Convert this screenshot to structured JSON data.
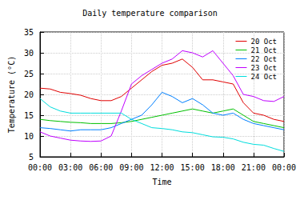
{
  "chart_data": {
    "type": "line",
    "title": "Daily temperature comparison",
    "x_label": "Time",
    "y_label": "Temperature (°C)",
    "x": [
      0,
      1,
      2,
      3,
      4,
      5,
      6,
      7,
      8,
      9,
      10,
      11,
      12,
      13,
      14,
      15,
      16,
      17,
      18,
      19,
      20,
      21,
      22,
      23,
      24
    ],
    "series": [
      {
        "name": "20 Oct",
        "color": "#e00000",
        "values": [
          21.5,
          21.3,
          20.5,
          20.2,
          19.8,
          19.0,
          18.5,
          18.5,
          19.5,
          21.5,
          23.5,
          25.5,
          27.0,
          27.5,
          28.5,
          26.5,
          23.5,
          23.5,
          23.0,
          22.5,
          18.0,
          15.5,
          15.0,
          14.0,
          13.5
        ]
      },
      {
        "name": "21 Oct",
        "color": "#00c000",
        "values": [
          14.0,
          13.7,
          13.5,
          13.3,
          13.2,
          13.0,
          13.0,
          13.0,
          13.2,
          13.5,
          14.0,
          14.5,
          15.0,
          15.5,
          16.0,
          16.5,
          16.0,
          15.5,
          16.0,
          16.5,
          15.0,
          13.5,
          13.0,
          12.5,
          12.0
        ]
      },
      {
        "name": "22 Oct",
        "color": "#0080ff",
        "values": [
          12.0,
          11.8,
          11.5,
          11.2,
          11.5,
          11.5,
          11.5,
          12.0,
          13.0,
          14.0,
          15.0,
          17.5,
          20.5,
          19.5,
          18.0,
          19.0,
          17.5,
          15.5,
          15.0,
          15.5,
          14.0,
          13.0,
          12.5,
          12.0,
          11.5
        ]
      },
      {
        "name": "23 Oct",
        "color": "#c000ff",
        "values": [
          11.0,
          10.0,
          9.5,
          9.0,
          8.8,
          8.7,
          8.8,
          10.0,
          16.0,
          22.5,
          24.5,
          26.0,
          27.5,
          28.5,
          30.5,
          30.0,
          29.0,
          30.5,
          27.5,
          24.5,
          20.0,
          19.5,
          18.5,
          18.3,
          19.5
        ]
      },
      {
        "name": "24 Oct",
        "color": "#00dddd",
        "values": [
          19.0,
          17.0,
          16.0,
          15.5,
          15.5,
          15.5,
          15.5,
          15.5,
          15.5,
          14.0,
          13.0,
          12.0,
          11.8,
          11.5,
          11.0,
          10.8,
          10.3,
          9.8,
          9.7,
          9.3,
          8.5,
          8.0,
          7.8,
          7.0,
          6.3
        ]
      }
    ],
    "xlim": [
      0,
      24
    ],
    "xticks": [
      {
        "value": 0,
        "label": "00:00"
      },
      {
        "value": 3,
        "label": "03:00"
      },
      {
        "value": 6,
        "label": "06:00"
      },
      {
        "value": 9,
        "label": "09:00"
      },
      {
        "value": 12,
        "label": "12:00"
      },
      {
        "value": 15,
        "label": "15:00"
      },
      {
        "value": 18,
        "label": "18:00"
      },
      {
        "value": 21,
        "label": "21:00"
      },
      {
        "value": 24,
        "label": "00:00"
      }
    ],
    "ylim": [
      5,
      35
    ],
    "yticks": [
      5,
      10,
      15,
      20,
      25,
      30,
      35
    ],
    "grid": true,
    "legend": "top-right"
  }
}
